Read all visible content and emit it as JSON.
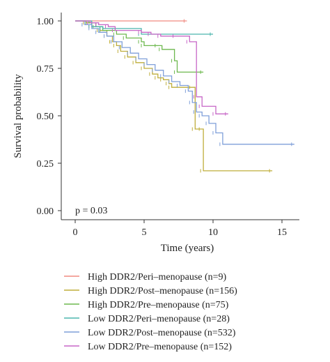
{
  "chart_data": {
    "type": "line",
    "subtype": "kaplan-meier step",
    "xlabel": "Time (years)",
    "ylabel": "Survival probability",
    "xlim": [
      0,
      16.5
    ],
    "ylim": [
      0,
      1.0
    ],
    "xticks": [
      0,
      5,
      10,
      15
    ],
    "yticks": [
      0.0,
      0.25,
      0.5,
      0.75,
      1.0
    ],
    "ytick_labels": [
      "0.00",
      "0.25",
      "0.50",
      "0.75",
      "1.00"
    ],
    "annotation": "p = 0.03",
    "legend_position": "bottom",
    "grid": false,
    "series": [
      {
        "name": "High DDR2/Peri–menopause (n=9)",
        "color": "#f08a80",
        "points": [
          [
            0,
            1.0
          ],
          [
            8.1,
            1.0
          ]
        ]
      },
      {
        "name": "High DDR2/Post–menopause (n=156)",
        "color": "#bfae3a",
        "points": [
          [
            0,
            1.0
          ],
          [
            0.8,
            0.99
          ],
          [
            1.2,
            0.97
          ],
          [
            1.8,
            0.95
          ],
          [
            2.3,
            0.92
          ],
          [
            2.7,
            0.89
          ],
          [
            3.0,
            0.87
          ],
          [
            3.3,
            0.84
          ],
          [
            3.8,
            0.81
          ],
          [
            4.4,
            0.78
          ],
          [
            5.0,
            0.75
          ],
          [
            5.6,
            0.72
          ],
          [
            6.0,
            0.7
          ],
          [
            6.4,
            0.69
          ],
          [
            6.8,
            0.67
          ],
          [
            7.0,
            0.65
          ],
          [
            8.5,
            0.65
          ],
          [
            8.7,
            0.43
          ],
          [
            9.2,
            0.43
          ],
          [
            9.3,
            0.21
          ],
          [
            14.3,
            0.21
          ]
        ]
      },
      {
        "name": "High DDR2/Pre–menopause (n=75)",
        "color": "#6db84e",
        "points": [
          [
            0,
            1.0
          ],
          [
            1.0,
            0.99
          ],
          [
            1.5,
            0.97
          ],
          [
            2.0,
            0.95
          ],
          [
            3.0,
            0.93
          ],
          [
            3.7,
            0.91
          ],
          [
            4.8,
            0.89
          ],
          [
            5.0,
            0.87
          ],
          [
            6.0,
            0.87
          ],
          [
            6.3,
            0.85
          ],
          [
            7.2,
            0.79
          ],
          [
            7.4,
            0.73
          ],
          [
            9.3,
            0.73
          ]
        ]
      },
      {
        "name": "Low DDR2/Peri–menopause (n=28)",
        "color": "#4bb5ad",
        "points": [
          [
            0,
            1.0
          ],
          [
            1.2,
            0.97
          ],
          [
            2.0,
            0.96
          ],
          [
            4.8,
            0.93
          ],
          [
            10.0,
            0.93
          ]
        ]
      },
      {
        "name": "Low DDR2/Post–menopause (n=532)",
        "color": "#7f9fd9",
        "points": [
          [
            0,
            1.0
          ],
          [
            0.7,
            0.98
          ],
          [
            1.2,
            0.96
          ],
          [
            1.7,
            0.94
          ],
          [
            2.3,
            0.92
          ],
          [
            2.8,
            0.89
          ],
          [
            3.4,
            0.86
          ],
          [
            4.0,
            0.83
          ],
          [
            4.6,
            0.8
          ],
          [
            5.2,
            0.77
          ],
          [
            5.8,
            0.74
          ],
          [
            6.4,
            0.71
          ],
          [
            7.0,
            0.68
          ],
          [
            7.6,
            0.66
          ],
          [
            8.2,
            0.63
          ],
          [
            8.5,
            0.57
          ],
          [
            8.8,
            0.52
          ],
          [
            9.2,
            0.5
          ],
          [
            9.7,
            0.46
          ],
          [
            10.2,
            0.41
          ],
          [
            10.7,
            0.35
          ],
          [
            15.9,
            0.35
          ]
        ]
      },
      {
        "name": "Low DDR2/Pre–menopause (n=152)",
        "color": "#c767c7",
        "points": [
          [
            0,
            1.0
          ],
          [
            1.1,
            0.99
          ],
          [
            1.7,
            0.98
          ],
          [
            2.4,
            0.97
          ],
          [
            2.9,
            0.95
          ],
          [
            4.8,
            0.94
          ],
          [
            5.5,
            0.93
          ],
          [
            6.2,
            0.92
          ],
          [
            7.3,
            0.92
          ],
          [
            8.3,
            0.89
          ],
          [
            8.8,
            0.6
          ],
          [
            9.2,
            0.55
          ],
          [
            10.2,
            0.51
          ],
          [
            11.1,
            0.51
          ]
        ]
      }
    ]
  }
}
